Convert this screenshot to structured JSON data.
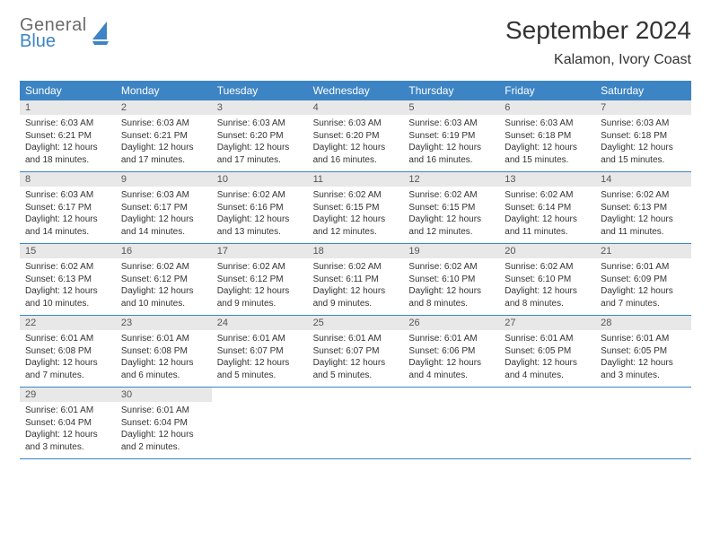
{
  "logo": {
    "text1": "General",
    "text2": "Blue"
  },
  "title": "September 2024",
  "location": "Kalamon, Ivory Coast",
  "colors": {
    "header_bar": "#3d84c4",
    "daynum_bg": "#e8e8e8",
    "row_border": "#3d84c4",
    "logo_grey": "#6b6b6b",
    "logo_blue": "#3d84c4"
  },
  "weekdays": [
    "Sunday",
    "Monday",
    "Tuesday",
    "Wednesday",
    "Thursday",
    "Friday",
    "Saturday"
  ],
  "days": [
    {
      "n": "1",
      "sunrise": "6:03 AM",
      "sunset": "6:21 PM",
      "daylight": "12 hours and 18 minutes."
    },
    {
      "n": "2",
      "sunrise": "6:03 AM",
      "sunset": "6:21 PM",
      "daylight": "12 hours and 17 minutes."
    },
    {
      "n": "3",
      "sunrise": "6:03 AM",
      "sunset": "6:20 PM",
      "daylight": "12 hours and 17 minutes."
    },
    {
      "n": "4",
      "sunrise": "6:03 AM",
      "sunset": "6:20 PM",
      "daylight": "12 hours and 16 minutes."
    },
    {
      "n": "5",
      "sunrise": "6:03 AM",
      "sunset": "6:19 PM",
      "daylight": "12 hours and 16 minutes."
    },
    {
      "n": "6",
      "sunrise": "6:03 AM",
      "sunset": "6:18 PM",
      "daylight": "12 hours and 15 minutes."
    },
    {
      "n": "7",
      "sunrise": "6:03 AM",
      "sunset": "6:18 PM",
      "daylight": "12 hours and 15 minutes."
    },
    {
      "n": "8",
      "sunrise": "6:03 AM",
      "sunset": "6:17 PM",
      "daylight": "12 hours and 14 minutes."
    },
    {
      "n": "9",
      "sunrise": "6:03 AM",
      "sunset": "6:17 PM",
      "daylight": "12 hours and 14 minutes."
    },
    {
      "n": "10",
      "sunrise": "6:02 AM",
      "sunset": "6:16 PM",
      "daylight": "12 hours and 13 minutes."
    },
    {
      "n": "11",
      "sunrise": "6:02 AM",
      "sunset": "6:15 PM",
      "daylight": "12 hours and 12 minutes."
    },
    {
      "n": "12",
      "sunrise": "6:02 AM",
      "sunset": "6:15 PM",
      "daylight": "12 hours and 12 minutes."
    },
    {
      "n": "13",
      "sunrise": "6:02 AM",
      "sunset": "6:14 PM",
      "daylight": "12 hours and 11 minutes."
    },
    {
      "n": "14",
      "sunrise": "6:02 AM",
      "sunset": "6:13 PM",
      "daylight": "12 hours and 11 minutes."
    },
    {
      "n": "15",
      "sunrise": "6:02 AM",
      "sunset": "6:13 PM",
      "daylight": "12 hours and 10 minutes."
    },
    {
      "n": "16",
      "sunrise": "6:02 AM",
      "sunset": "6:12 PM",
      "daylight": "12 hours and 10 minutes."
    },
    {
      "n": "17",
      "sunrise": "6:02 AM",
      "sunset": "6:12 PM",
      "daylight": "12 hours and 9 minutes."
    },
    {
      "n": "18",
      "sunrise": "6:02 AM",
      "sunset": "6:11 PM",
      "daylight": "12 hours and 9 minutes."
    },
    {
      "n": "19",
      "sunrise": "6:02 AM",
      "sunset": "6:10 PM",
      "daylight": "12 hours and 8 minutes."
    },
    {
      "n": "20",
      "sunrise": "6:02 AM",
      "sunset": "6:10 PM",
      "daylight": "12 hours and 8 minutes."
    },
    {
      "n": "21",
      "sunrise": "6:01 AM",
      "sunset": "6:09 PM",
      "daylight": "12 hours and 7 minutes."
    },
    {
      "n": "22",
      "sunrise": "6:01 AM",
      "sunset": "6:08 PM",
      "daylight": "12 hours and 7 minutes."
    },
    {
      "n": "23",
      "sunrise": "6:01 AM",
      "sunset": "6:08 PM",
      "daylight": "12 hours and 6 minutes."
    },
    {
      "n": "24",
      "sunrise": "6:01 AM",
      "sunset": "6:07 PM",
      "daylight": "12 hours and 5 minutes."
    },
    {
      "n": "25",
      "sunrise": "6:01 AM",
      "sunset": "6:07 PM",
      "daylight": "12 hours and 5 minutes."
    },
    {
      "n": "26",
      "sunrise": "6:01 AM",
      "sunset": "6:06 PM",
      "daylight": "12 hours and 4 minutes."
    },
    {
      "n": "27",
      "sunrise": "6:01 AM",
      "sunset": "6:05 PM",
      "daylight": "12 hours and 4 minutes."
    },
    {
      "n": "28",
      "sunrise": "6:01 AM",
      "sunset": "6:05 PM",
      "daylight": "12 hours and 3 minutes."
    },
    {
      "n": "29",
      "sunrise": "6:01 AM",
      "sunset": "6:04 PM",
      "daylight": "12 hours and 3 minutes."
    },
    {
      "n": "30",
      "sunrise": "6:01 AM",
      "sunset": "6:04 PM",
      "daylight": "12 hours and 2 minutes."
    }
  ],
  "labels": {
    "sunrise": "Sunrise:",
    "sunset": "Sunset:",
    "daylight": "Daylight:"
  },
  "layout": {
    "columns": 7,
    "start_weekday": 0,
    "weeks": 5
  }
}
